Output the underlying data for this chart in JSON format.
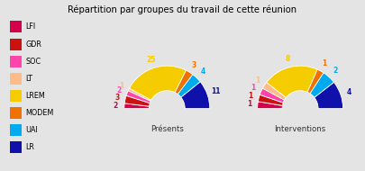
{
  "title": "Répartition par groupes du travail de cette réunion",
  "background_color": "#e4e4e4",
  "legend_labels": [
    "LFI",
    "GDR",
    "SOC",
    "LT",
    "LREM",
    "MODEM",
    "UAI",
    "LR"
  ],
  "colors": [
    "#d4004c",
    "#cc1111",
    "#ff44aa",
    "#ffbb88",
    "#f5cc00",
    "#f07000",
    "#00aaee",
    "#1010aa"
  ],
  "presences": [
    2,
    3,
    2,
    1,
    25,
    3,
    4,
    11
  ],
  "interventions": [
    1,
    1,
    1,
    1,
    8,
    1,
    2,
    4
  ],
  "subtitle1": "Présents",
  "subtitle2": "Interventions"
}
